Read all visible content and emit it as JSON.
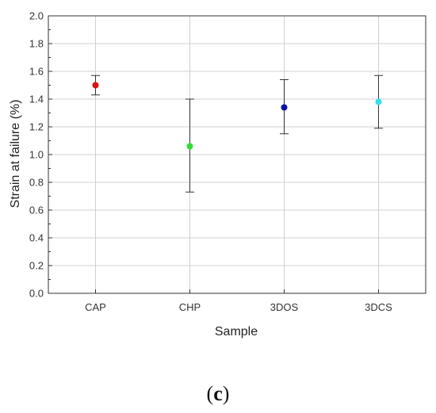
{
  "chart_data": {
    "type": "scatter",
    "title": "",
    "xlabel": "Sample",
    "ylabel": "Strain at failure (%)",
    "categories": [
      "CAP",
      "CHP",
      "3DOS",
      "3DCS"
    ],
    "ylim": [
      0.0,
      2.0
    ],
    "yticks": [
      "0.0",
      "0.2",
      "0.4",
      "0.6",
      "0.8",
      "1.0",
      "1.2",
      "1.4",
      "1.6",
      "1.8",
      "2.0"
    ],
    "grid": true,
    "points": [
      {
        "category": "CAP",
        "value": 1.5,
        "error_low": 1.43,
        "error_high": 1.57,
        "color": "#dd1111"
      },
      {
        "category": "CHP",
        "value": 1.06,
        "error_low": 0.73,
        "error_high": 1.4,
        "color": "#33dd33"
      },
      {
        "category": "3DOS",
        "value": 1.34,
        "error_low": 1.15,
        "error_high": 1.54,
        "color": "#1111aa"
      },
      {
        "category": "3DCS",
        "value": 1.38,
        "error_low": 1.19,
        "error_high": 1.57,
        "color": "#33e0ee"
      }
    ]
  },
  "panel_label": {
    "open": "(",
    "letter": "c",
    "close": ")"
  }
}
